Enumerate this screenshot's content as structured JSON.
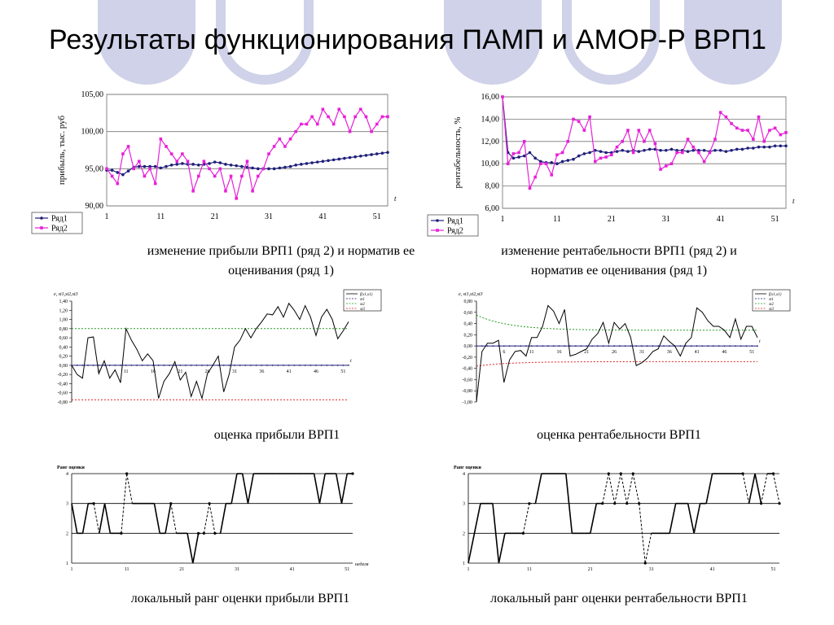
{
  "title": "Результаты функционирования ПАМП и АМОР-Р ВРП1",
  "captions": {
    "c1": "изменение прибыли ВРП1 (ряд 2) и норматив ее оценивания (ряд 1)",
    "c2": "изменение рентабельности ВРП1 (ряд 2) и норматив ее оценивания (ряд 1)",
    "c3": "оценка прибыли ВРП1",
    "c4": "оценка рентабельности ВРП1",
    "c5": "локальный ранг оценки прибыли ВРП1",
    "c6": "локальный ранг оценки рентабельности ВРП1"
  },
  "colors": {
    "series1": "#1f1f7a",
    "series2": "#e820d8",
    "deco": "#cfd2e8",
    "green": "#229922",
    "red": "#dd2222"
  },
  "chart_data": [
    {
      "id": "profit",
      "type": "line",
      "ylabel": "прибыль, тыс. руб",
      "xlabel": "t",
      "ylim": [
        90,
        105
      ],
      "yticks": [
        "90,00",
        "95,00",
        "100,00",
        "105,00"
      ],
      "xticks": [
        "1",
        "11",
        "21",
        "31",
        "41",
        "51"
      ],
      "legend": "bottom-left",
      "series": [
        {
          "name": "Ряд1",
          "values": [
            94.8,
            94.8,
            94.5,
            94.2,
            94.7,
            95.2,
            95.3,
            95.3,
            95.3,
            95.3,
            95.1,
            95.3,
            95.5,
            95.6,
            95.7,
            95.6,
            95.6,
            95.5,
            95.6,
            95.7,
            95.9,
            95.8,
            95.6,
            95.5,
            95.4,
            95.3,
            95.2,
            95.1,
            95.0,
            95.0,
            95.0,
            95.0,
            95.1,
            95.2,
            95.3,
            95.5,
            95.6,
            95.7,
            95.8,
            95.9,
            96.0,
            96.1,
            96.2,
            96.3,
            96.4,
            96.5,
            96.6,
            96.7,
            96.8,
            96.9,
            97.0,
            97.1,
            97.2
          ]
        },
        {
          "name": "Ряд2",
          "values": [
            95.0,
            94.0,
            93.0,
            97.0,
            98.0,
            95.0,
            96.0,
            94.0,
            95.0,
            93.0,
            99.0,
            98.0,
            97.0,
            96.0,
            97.0,
            96.0,
            92.0,
            94.0,
            96.0,
            95.0,
            94.0,
            95.0,
            92.0,
            94.0,
            91.0,
            94.0,
            96.0,
            92.0,
            94.0,
            95.0,
            97.0,
            98.0,
            99.0,
            98.0,
            99.0,
            100.0,
            101.0,
            101.0,
            102.0,
            101.0,
            103.0,
            102.0,
            101.0,
            103.0,
            102.0,
            100.0,
            102.0,
            103.0,
            102.0,
            100.0,
            101.0,
            102.0,
            102.0
          ]
        }
      ]
    },
    {
      "id": "rent",
      "type": "line",
      "ylabel": "рентабельность, %",
      "xlabel": "t",
      "ylim": [
        6,
        16
      ],
      "yticks": [
        "6,00",
        "8,00",
        "10,00",
        "12,00",
        "14,00",
        "16,00"
      ],
      "xticks": [
        "1",
        "11",
        "21",
        "31",
        "41",
        "51"
      ],
      "legend": "bottom-left",
      "series": [
        {
          "name": "Ряд1",
          "values": [
            16.0,
            11.0,
            10.5,
            10.6,
            10.7,
            11.0,
            10.5,
            10.2,
            10.1,
            10.1,
            10.0,
            10.2,
            10.3,
            10.4,
            10.7,
            10.9,
            11.0,
            11.2,
            11.1,
            11.0,
            11.0,
            11.1,
            11.2,
            11.1,
            11.2,
            11.1,
            11.2,
            11.3,
            11.3,
            11.2,
            11.2,
            11.3,
            11.2,
            11.2,
            11.1,
            11.2,
            11.2,
            11.2,
            11.1,
            11.2,
            11.2,
            11.1,
            11.2,
            11.3,
            11.3,
            11.4,
            11.4,
            11.5,
            11.5,
            11.5,
            11.6,
            11.6,
            11.6
          ]
        },
        {
          "name": "Ряд2",
          "values": [
            16.0,
            10.0,
            10.9,
            11.0,
            12.0,
            7.8,
            8.8,
            10.0,
            10.0,
            9.0,
            10.8,
            11.0,
            12.0,
            14.0,
            13.8,
            13.0,
            14.2,
            10.2,
            10.5,
            10.6,
            10.8,
            11.5,
            12.0,
            13.0,
            11.0,
            13.0,
            12.0,
            13.0,
            11.8,
            9.5,
            9.8,
            10.0,
            11.0,
            11.0,
            12.2,
            11.5,
            11.0,
            10.2,
            11.0,
            12.2,
            14.6,
            14.2,
            13.6,
            13.2,
            13.0,
            13.0,
            12.2,
            14.2,
            12.0,
            13.0,
            13.2,
            12.6,
            12.8
          ]
        }
      ]
    },
    {
      "id": "profit_est",
      "type": "line",
      "ylabel": "e, st1,st2,st3",
      "xlabel": "t",
      "ylim": [
        -0.8,
        1.4
      ],
      "yticks": [
        "-0,80",
        "-0,60",
        "-0,40",
        "-0,20",
        "0,00",
        "0,20",
        "0,40",
        "0,60",
        "0,80",
        "1,00",
        "1,20",
        "1,40"
      ],
      "xticks": [
        "6",
        "11",
        "16",
        "21",
        "26",
        "31",
        "36",
        "41",
        "46",
        "51"
      ],
      "legend": "top-right",
      "series": [
        {
          "name": "f(x1,x1)",
          "values": [
            0.0,
            -0.2,
            -0.28,
            0.6,
            0.62,
            -0.18,
            0.1,
            -0.28,
            -0.1,
            -0.38,
            0.8,
            0.55,
            0.35,
            0.1,
            0.25,
            0.1,
            -0.72,
            -0.35,
            -0.18,
            0.08,
            -0.32,
            -0.15,
            -0.68,
            -0.35,
            -0.72,
            -0.18,
            0.0,
            0.2,
            -0.58,
            -0.2,
            0.4,
            0.55,
            0.8,
            0.6,
            0.8,
            0.95,
            1.12,
            1.1,
            1.28,
            1.05,
            1.35,
            1.2,
            1.0,
            1.3,
            1.05,
            0.65,
            1.05,
            1.22,
            1.0,
            0.58,
            0.75,
            0.95
          ]
        },
        {
          "name": "st1",
          "const": 0.0
        },
        {
          "name": "st2",
          "const": 0.8
        },
        {
          "name": "st3",
          "const": -0.75
        }
      ]
    },
    {
      "id": "rent_est",
      "type": "line",
      "ylabel": "e, st1,st2,st3",
      "xlabel": "t",
      "ylim": [
        -1.0,
        0.8
      ],
      "yticks": [
        "-1,00",
        "-0,80",
        "-0,60",
        "-0,40",
        "-0,20",
        "0,00",
        "0,20",
        "0,40",
        "0,60",
        "0,80"
      ],
      "xticks": [
        "6",
        "11",
        "16",
        "21",
        "26",
        "31",
        "36",
        "41",
        "46",
        "51"
      ],
      "legend": "top-right",
      "series": [
        {
          "name": "f(x1,x1)",
          "values": [
            -1.0,
            -0.1,
            0.05,
            0.05,
            0.1,
            -0.65,
            -0.25,
            -0.1,
            -0.08,
            -0.18,
            0.15,
            0.15,
            0.35,
            0.72,
            0.62,
            0.4,
            0.65,
            -0.18,
            -0.15,
            -0.1,
            -0.05,
            0.12,
            0.22,
            0.42,
            0.05,
            0.42,
            0.3,
            0.4,
            0.15,
            -0.35,
            -0.3,
            -0.22,
            -0.1,
            -0.05,
            0.18,
            0.08,
            0.0,
            -0.18,
            0.05,
            0.15,
            0.68,
            0.6,
            0.45,
            0.35,
            0.35,
            0.28,
            0.15,
            0.48,
            0.12,
            0.35,
            0.35,
            0.15
          ]
        },
        {
          "name": "st1",
          "const": 0.0
        },
        {
          "name": "st2",
          "decay": [
            0.55,
            0.28
          ]
        },
        {
          "name": "st3",
          "decay": [
            -0.36,
            -0.28
          ]
        }
      ]
    },
    {
      "id": "profit_rank",
      "type": "line",
      "ylabel": "Ранг оценки",
      "xlabel": "неделя",
      "ylim": [
        1,
        4
      ],
      "yticks": [
        "1",
        "2",
        "3",
        "4"
      ],
      "xticks": [
        "1",
        "11",
        "21",
        "31",
        "41",
        "51"
      ],
      "series": [
        {
          "name": "rank",
          "values": [
            3,
            2,
            2,
            3,
            3,
            2,
            3,
            2,
            2,
            2,
            4,
            3,
            3,
            3,
            3,
            3,
            2,
            2,
            3,
            2,
            2,
            2,
            1,
            2,
            2,
            3,
            2,
            2,
            3,
            3,
            4,
            4,
            3,
            4,
            4,
            4,
            4,
            4,
            4,
            4,
            4,
            4,
            4,
            4,
            4,
            3,
            4,
            4,
            4,
            3,
            4,
            4
          ]
        },
        {
          "name": "dashed",
          "segments": [
            [
              4,
              5
            ],
            [
              9,
              10
            ],
            [
              10,
              11
            ],
            [
              18,
              19
            ],
            [
              23,
              24
            ],
            [
              24,
              25
            ],
            [
              25,
              26
            ],
            [
              26,
              27
            ]
          ]
        }
      ]
    },
    {
      "id": "rent_rank",
      "type": "line",
      "ylabel": "Ранг оценки",
      "xlabel": "",
      "ylim": [
        1,
        4
      ],
      "yticks": [
        "1",
        "2",
        "3",
        "4"
      ],
      "xticks": [
        "1",
        "11",
        "21",
        "31",
        "41",
        "51"
      ],
      "series": [
        {
          "name": "rank",
          "values": [
            1,
            2,
            3,
            3,
            3,
            1,
            2,
            2,
            2,
            2,
            3,
            3,
            4,
            4,
            4,
            4,
            4,
            2,
            2,
            2,
            2,
            3,
            3,
            4,
            3,
            4,
            3,
            4,
            3,
            1,
            2,
            2,
            2,
            2,
            3,
            3,
            3,
            2,
            3,
            3,
            4,
            4,
            4,
            4,
            4,
            4,
            3,
            4,
            3,
            4,
            4,
            3
          ]
        },
        {
          "name": "dashed",
          "segments": [
            [
              9,
              10
            ],
            [
              10,
              11
            ],
            [
              22,
              23
            ],
            [
              23,
              24
            ],
            [
              24,
              25
            ],
            [
              25,
              26
            ],
            [
              26,
              27
            ],
            [
              27,
              28
            ],
            [
              28,
              29
            ],
            [
              29,
              30
            ],
            [
              45,
              46
            ],
            [
              48,
              49
            ],
            [
              50,
              51
            ]
          ]
        }
      ]
    }
  ]
}
